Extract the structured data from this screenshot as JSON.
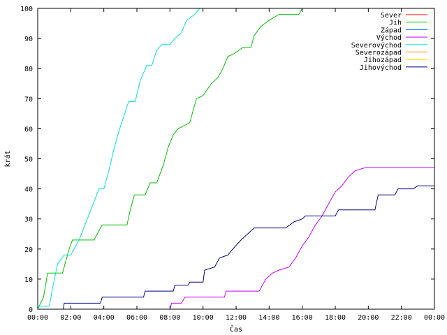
{
  "chart_data": {
    "type": "line",
    "title": "",
    "xlabel": "Čas",
    "ylabel": "krát",
    "xlim": [
      0,
      24
    ],
    "ylim": [
      0,
      100
    ],
    "x_ticks": [
      {
        "value": 0,
        "label": "00:00"
      },
      {
        "value": 2,
        "label": "02:00"
      },
      {
        "value": 4,
        "label": "04:00"
      },
      {
        "value": 6,
        "label": "06:00"
      },
      {
        "value": 8,
        "label": "08:00"
      },
      {
        "value": 10,
        "label": "10:00"
      },
      {
        "value": 12,
        "label": "12:00"
      },
      {
        "value": 14,
        "label": "14:00"
      },
      {
        "value": 16,
        "label": "16:00"
      },
      {
        "value": 18,
        "label": "18:00"
      },
      {
        "value": 20,
        "label": "20:00"
      },
      {
        "value": 22,
        "label": "22:00"
      },
      {
        "value": 24,
        "label": "00:00"
      }
    ],
    "y_ticks": [
      0,
      10,
      20,
      30,
      40,
      50,
      60,
      70,
      80,
      90,
      100
    ],
    "grid": false,
    "legend_position": "top-right",
    "series": [
      {
        "name": "Sever",
        "color": "#ff0000",
        "points": []
      },
      {
        "name": "Jih",
        "color": "#00c000",
        "points": [
          [
            0,
            0
          ],
          [
            0.35,
            4
          ],
          [
            0.6,
            12
          ],
          [
            1.5,
            12
          ],
          [
            1.9,
            20
          ],
          [
            2.1,
            23
          ],
          [
            3.4,
            23
          ],
          [
            3.7,
            26
          ],
          [
            3.9,
            28
          ],
          [
            5.4,
            28
          ],
          [
            5.6,
            33
          ],
          [
            5.85,
            38
          ],
          [
            6.5,
            38
          ],
          [
            6.8,
            42
          ],
          [
            7.2,
            42
          ],
          [
            7.6,
            48
          ],
          [
            7.9,
            54
          ],
          [
            8.2,
            58
          ],
          [
            8.5,
            60
          ],
          [
            9.2,
            62
          ],
          [
            9.6,
            70
          ],
          [
            10.0,
            71
          ],
          [
            10.5,
            75
          ],
          [
            10.9,
            77
          ],
          [
            11.2,
            80
          ],
          [
            11.5,
            84
          ],
          [
            11.9,
            85
          ],
          [
            12.4,
            87
          ],
          [
            12.9,
            87
          ],
          [
            13.1,
            91
          ],
          [
            13.5,
            94
          ],
          [
            14.0,
            96
          ],
          [
            14.6,
            98
          ],
          [
            15.8,
            98
          ],
          [
            16.0,
            100
          ],
          [
            24,
            100
          ]
        ]
      },
      {
        "name": "Západ",
        "color": "#0080ff",
        "points": []
      },
      {
        "name": "Východ",
        "color": "#c000ff",
        "points": [
          [
            7.6,
            0
          ],
          [
            8.0,
            0
          ],
          [
            8.1,
            2
          ],
          [
            8.7,
            2
          ],
          [
            8.9,
            4
          ],
          [
            11.3,
            4
          ],
          [
            11.4,
            6
          ],
          [
            13.4,
            6
          ],
          [
            13.8,
            10
          ],
          [
            14.2,
            12
          ],
          [
            14.6,
            13
          ],
          [
            15.2,
            14
          ],
          [
            15.6,
            17
          ],
          [
            16.0,
            21
          ],
          [
            16.4,
            24
          ],
          [
            16.8,
            28
          ],
          [
            17.2,
            31
          ],
          [
            17.6,
            35
          ],
          [
            18.0,
            39
          ],
          [
            18.4,
            41
          ],
          [
            18.8,
            44
          ],
          [
            19.2,
            46
          ],
          [
            19.8,
            47
          ],
          [
            24,
            47
          ]
        ]
      },
      {
        "name": "Severovýchod",
        "color": "#00e0e0",
        "points": [
          [
            0,
            0
          ],
          [
            0.1,
            1
          ],
          [
            0.7,
            1
          ],
          [
            0.9,
            7
          ],
          [
            1.2,
            15
          ],
          [
            1.6,
            18
          ],
          [
            2.0,
            18
          ],
          [
            2.5,
            23
          ],
          [
            3.0,
            30
          ],
          [
            3.5,
            37
          ],
          [
            3.7,
            40
          ],
          [
            4.0,
            40
          ],
          [
            4.3,
            46
          ],
          [
            4.6,
            53
          ],
          [
            4.9,
            59
          ],
          [
            5.2,
            64
          ],
          [
            5.5,
            69
          ],
          [
            5.9,
            69
          ],
          [
            6.2,
            76
          ],
          [
            6.6,
            81
          ],
          [
            6.9,
            81
          ],
          [
            7.2,
            86
          ],
          [
            7.5,
            88
          ],
          [
            8.0,
            88
          ],
          [
            8.3,
            90
          ],
          [
            8.7,
            92
          ],
          [
            9.0,
            96
          ],
          [
            9.5,
            98
          ],
          [
            9.8,
            100
          ]
        ]
      },
      {
        "name": "Severozápad",
        "color": "#ff8000",
        "points": []
      },
      {
        "name": "Jihozápad",
        "color": "#ffe000",
        "points": []
      },
      {
        "name": "Jihovýchod",
        "color": "#000080",
        "points": [
          [
            1.55,
            0
          ],
          [
            1.6,
            2
          ],
          [
            3.8,
            2
          ],
          [
            3.9,
            4
          ],
          [
            6.4,
            4
          ],
          [
            6.5,
            6
          ],
          [
            8.2,
            6
          ],
          [
            8.3,
            8
          ],
          [
            9.1,
            8
          ],
          [
            9.2,
            9
          ],
          [
            10.0,
            9
          ],
          [
            10.1,
            13
          ],
          [
            10.7,
            14
          ],
          [
            11.0,
            17
          ],
          [
            11.5,
            18
          ],
          [
            11.8,
            20
          ],
          [
            12.3,
            23
          ],
          [
            12.9,
            26
          ],
          [
            13.1,
            27
          ],
          [
            15.0,
            27
          ],
          [
            15.5,
            29
          ],
          [
            16.0,
            30
          ],
          [
            16.2,
            31
          ],
          [
            18.0,
            31
          ],
          [
            18.2,
            33
          ],
          [
            20.4,
            33
          ],
          [
            20.6,
            38
          ],
          [
            21.6,
            38
          ],
          [
            21.8,
            40
          ],
          [
            22.7,
            40
          ],
          [
            23.0,
            41
          ],
          [
            24,
            41
          ]
        ]
      }
    ]
  }
}
